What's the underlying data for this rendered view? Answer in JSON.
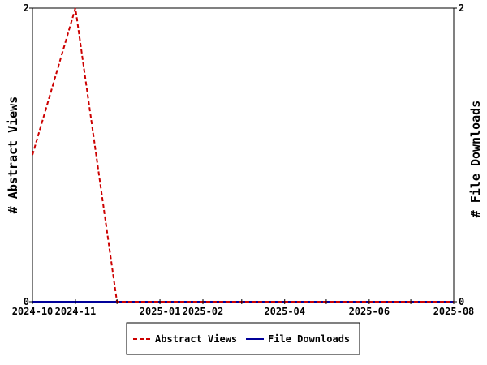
{
  "chart_data": {
    "type": "line",
    "y_left_label": "# Abstract Views",
    "y_right_label": "# File Downloads",
    "y_left_range": [
      0,
      2
    ],
    "y_right_range": [
      0,
      2
    ],
    "y_left_ticks": [
      "0",
      "2"
    ],
    "y_right_ticks": [
      "0",
      "2"
    ],
    "x_range": [
      "2024-10-01",
      "2025-08-01"
    ],
    "x_ticks": [
      {
        "date": "2024-10-01",
        "label": "2024-10"
      },
      {
        "date": "2024-11-01",
        "label": "2024-11"
      },
      {
        "date": "2024-12-01",
        "label": ""
      },
      {
        "date": "2025-01-01",
        "label": "2025-01"
      },
      {
        "date": "2025-02-01",
        "label": "2025-02"
      },
      {
        "date": "2025-03-01",
        "label": ""
      },
      {
        "date": "2025-04-01",
        "label": "2025-04"
      },
      {
        "date": "2025-05-01",
        "label": ""
      },
      {
        "date": "2025-06-01",
        "label": "2025-06"
      },
      {
        "date": "2025-07-01",
        "label": ""
      },
      {
        "date": "2025-08-01",
        "label": "2025-08"
      }
    ],
    "grid": false,
    "legend_position": "bottom",
    "series": [
      {
        "name": "Abstract Views",
        "axis": "left",
        "color": "#cc0000",
        "style": "dashed",
        "points": [
          {
            "x": "2024-10-01",
            "y": 1
          },
          {
            "x": "2024-11-01",
            "y": 2
          },
          {
            "x": "2024-12-01",
            "y": 0
          },
          {
            "x": "2025-08-01",
            "y": 0
          }
        ]
      },
      {
        "name": "File Downloads",
        "axis": "right",
        "color": "#000099",
        "style": "solid",
        "points": [
          {
            "x": "2024-10-01",
            "y": 0
          },
          {
            "x": "2025-08-01",
            "y": 0
          }
        ]
      }
    ]
  }
}
